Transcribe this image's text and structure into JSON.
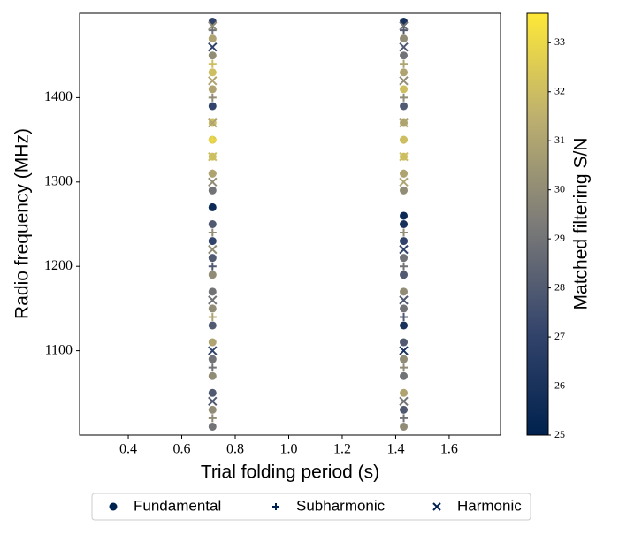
{
  "chart_data": {
    "type": "scatter",
    "xlabel": "Trial folding period (s)",
    "ylabel": "Radio frequency (MHz)",
    "xlim": [
      0.218,
      1.792
    ],
    "xticks": [
      0.4,
      0.6,
      0.8,
      {
        "value": 1.0,
        "label": "1.0"
      },
      1.2,
      1.4,
      1.6
    ],
    "ylim": [
      1000,
      1500
    ],
    "yticks": [
      1100,
      1200,
      1300,
      1400
    ],
    "colorbar": {
      "label": "Matched filtering S/N",
      "lim": [
        25,
        33.6
      ],
      "ticks": [
        25,
        26,
        27,
        28,
        29,
        30,
        31,
        32,
        33
      ],
      "colors": [
        "#00224e",
        "#35456c",
        "#7c7b78",
        "#bcaf6f",
        "#fee838"
      ]
    },
    "legend": "lower center",
    "series": [
      {
        "name": "Fundamental",
        "marker": "circle",
        "color": "#00224e",
        "x": [
          0.715,
          0.715,
          0.715,
          0.715,
          0.715,
          0.715,
          0.715,
          0.715,
          0.715,
          0.715,
          0.715,
          0.715,
          0.715,
          0.715,
          0.715,
          0.715,
          0.715,
          0.715,
          0.715,
          0.715,
          0.715,
          0.715,
          0.715,
          0.715,
          0.715,
          1.43,
          1.43,
          1.43,
          1.43,
          1.43,
          1.43,
          1.43,
          1.43,
          1.43,
          1.43,
          1.43,
          1.43,
          1.43,
          1.43,
          1.43,
          1.43,
          1.43,
          1.43,
          1.43,
          1.43,
          1.43,
          1.43,
          1.43,
          1.43,
          1.43
        ],
        "y": [
          1010,
          1030,
          1050,
          1070,
          1090,
          1110,
          1130,
          1150,
          1170,
          1190,
          1210,
          1230,
          1250,
          1270,
          1290,
          1310,
          1330,
          1350,
          1370,
          1390,
          1410,
          1430,
          1450,
          1470,
          1490,
          1010,
          1030,
          1050,
          1070,
          1090,
          1110,
          1130,
          1150,
          1170,
          1190,
          1210,
          1230,
          1250,
          1260,
          1290,
          1310,
          1330,
          1350,
          1370,
          1390,
          1410,
          1430,
          1450,
          1470,
          1490
        ],
        "values": [
          29,
          30,
          28,
          30,
          29,
          31,
          28,
          30,
          29,
          30,
          28,
          27,
          28,
          25.5,
          29,
          31,
          32,
          32.5,
          32,
          27,
          31,
          32,
          30,
          31,
          27,
          30,
          28,
          31,
          29,
          30,
          28,
          26,
          29,
          30,
          28,
          29,
          27,
          26,
          25.5,
          30,
          31,
          32,
          32,
          31,
          28,
          32,
          31,
          29,
          30,
          26
        ]
      },
      {
        "name": "Subharmonic",
        "marker": "plus",
        "color": "#00224e",
        "x": [
          0.715,
          0.715,
          0.715,
          0.715,
          0.715,
          0.715,
          0.715,
          0.715,
          0.715,
          0.715,
          1.43,
          1.43,
          1.43,
          1.43,
          1.43,
          1.43,
          1.43,
          1.43,
          1.43,
          1.43
        ],
        "y": [
          1020,
          1080,
          1140,
          1200,
          1240,
          1310,
          1350,
          1400,
          1440,
          1480,
          1020,
          1080,
          1140,
          1200,
          1240,
          1310,
          1350,
          1400,
          1440,
          1480
        ],
        "values": [
          30,
          29,
          31,
          28,
          30,
          31,
          33,
          30,
          32,
          29,
          29,
          30,
          28,
          29,
          30,
          31,
          32,
          30,
          31,
          28
        ]
      },
      {
        "name": "Harmonic",
        "marker": "cross",
        "color": "#00224e",
        "x": [
          0.715,
          0.715,
          0.715,
          0.715,
          0.715,
          0.715,
          0.715,
          0.715,
          0.715,
          0.715,
          1.43,
          1.43,
          1.43,
          1.43,
          1.43,
          1.43,
          1.43,
          1.43,
          1.43,
          1.43
        ],
        "y": [
          1040,
          1100,
          1160,
          1220,
          1300,
          1330,
          1370,
          1420,
          1460,
          1485,
          1040,
          1100,
          1160,
          1220,
          1300,
          1330,
          1370,
          1420,
          1460,
          1485
        ],
        "values": [
          28,
          27,
          29,
          30,
          30,
          32,
          31,
          31,
          27,
          30,
          29,
          26,
          28,
          27,
          31,
          32,
          31,
          30,
          28,
          29
        ]
      }
    ]
  }
}
